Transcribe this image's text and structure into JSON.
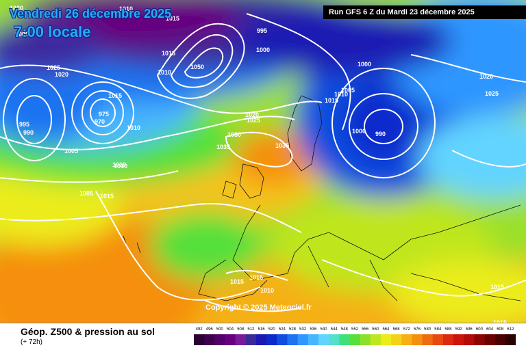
{
  "header": {
    "date": "Vendredi 26 décembre 2025",
    "time": "7:00 locale",
    "run": "Run GFS 6 Z du Mardi 23 décembre 2025"
  },
  "copyright": "Copyright © 2025 Meteociel.fr",
  "legend": {
    "title": "Géop. Z500 & pression au sol",
    "subtitle": "(+ 72h)",
    "ticks": [
      "492",
      "496",
      "500",
      "504",
      "508",
      "512",
      "516",
      "520",
      "524",
      "528",
      "532",
      "536",
      "540",
      "544",
      "548",
      "552",
      "556",
      "560",
      "564",
      "568",
      "572",
      "576",
      "580",
      "584",
      "588",
      "592",
      "596",
      "600",
      "604",
      "608",
      "612"
    ],
    "colors": [
      "#2b0033",
      "#3d004d",
      "#52006b",
      "#660080",
      "#7a1a99",
      "#3a2a99",
      "#1a1ab3",
      "#0a2acc",
      "#0f4fe0",
      "#1f73f0",
      "#2f97ff",
      "#48b6ff",
      "#62d4ff",
      "#52e0c8",
      "#3ee07a",
      "#55e03a",
      "#8ce02a",
      "#bfe61f",
      "#ecec1a",
      "#f5d21a",
      "#f5b014",
      "#f58f10",
      "#f06a0f",
      "#e64a0f",
      "#db2a0f",
      "#cc140f",
      "#b30a0a",
      "#8c0505",
      "#6b0000",
      "#4a0000",
      "#2a0000"
    ]
  },
  "pressure_labels": [
    {
      "text": "1020"
    },
    {
      "text": "1010"
    },
    {
      "text": "1015"
    },
    {
      "text": "995"
    },
    {
      "text": "1000"
    },
    {
      "text": "1000"
    },
    {
      "text": "1025"
    },
    {
      "text": "1020"
    },
    {
      "text": "1015"
    },
    {
      "text": "1010"
    },
    {
      "text": "1050"
    },
    {
      "text": "1000"
    },
    {
      "text": "995"
    },
    {
      "text": "990"
    },
    {
      "text": "975"
    },
    {
      "text": "970"
    },
    {
      "text": "1010"
    },
    {
      "text": "1005"
    },
    {
      "text": "1010"
    },
    {
      "text": "1005"
    },
    {
      "text": "1015"
    },
    {
      "text": "1020"
    },
    {
      "text": "1025"
    },
    {
      "text": "1030"
    },
    {
      "text": "1035"
    },
    {
      "text": "1035"
    },
    {
      "text": "1010"
    },
    {
      "text": "1005"
    },
    {
      "text": "1015"
    },
    {
      "text": "1000"
    },
    {
      "text": "990"
    },
    {
      "text": "1000"
    },
    {
      "text": "1020"
    },
    {
      "text": "1025"
    },
    {
      "text": "1015"
    },
    {
      "text": "1015"
    },
    {
      "text": "1010"
    },
    {
      "text": "1015"
    },
    {
      "text": "1010"
    },
    {
      "text": "1015"
    },
    {
      "text": "1015"
    }
  ]
}
